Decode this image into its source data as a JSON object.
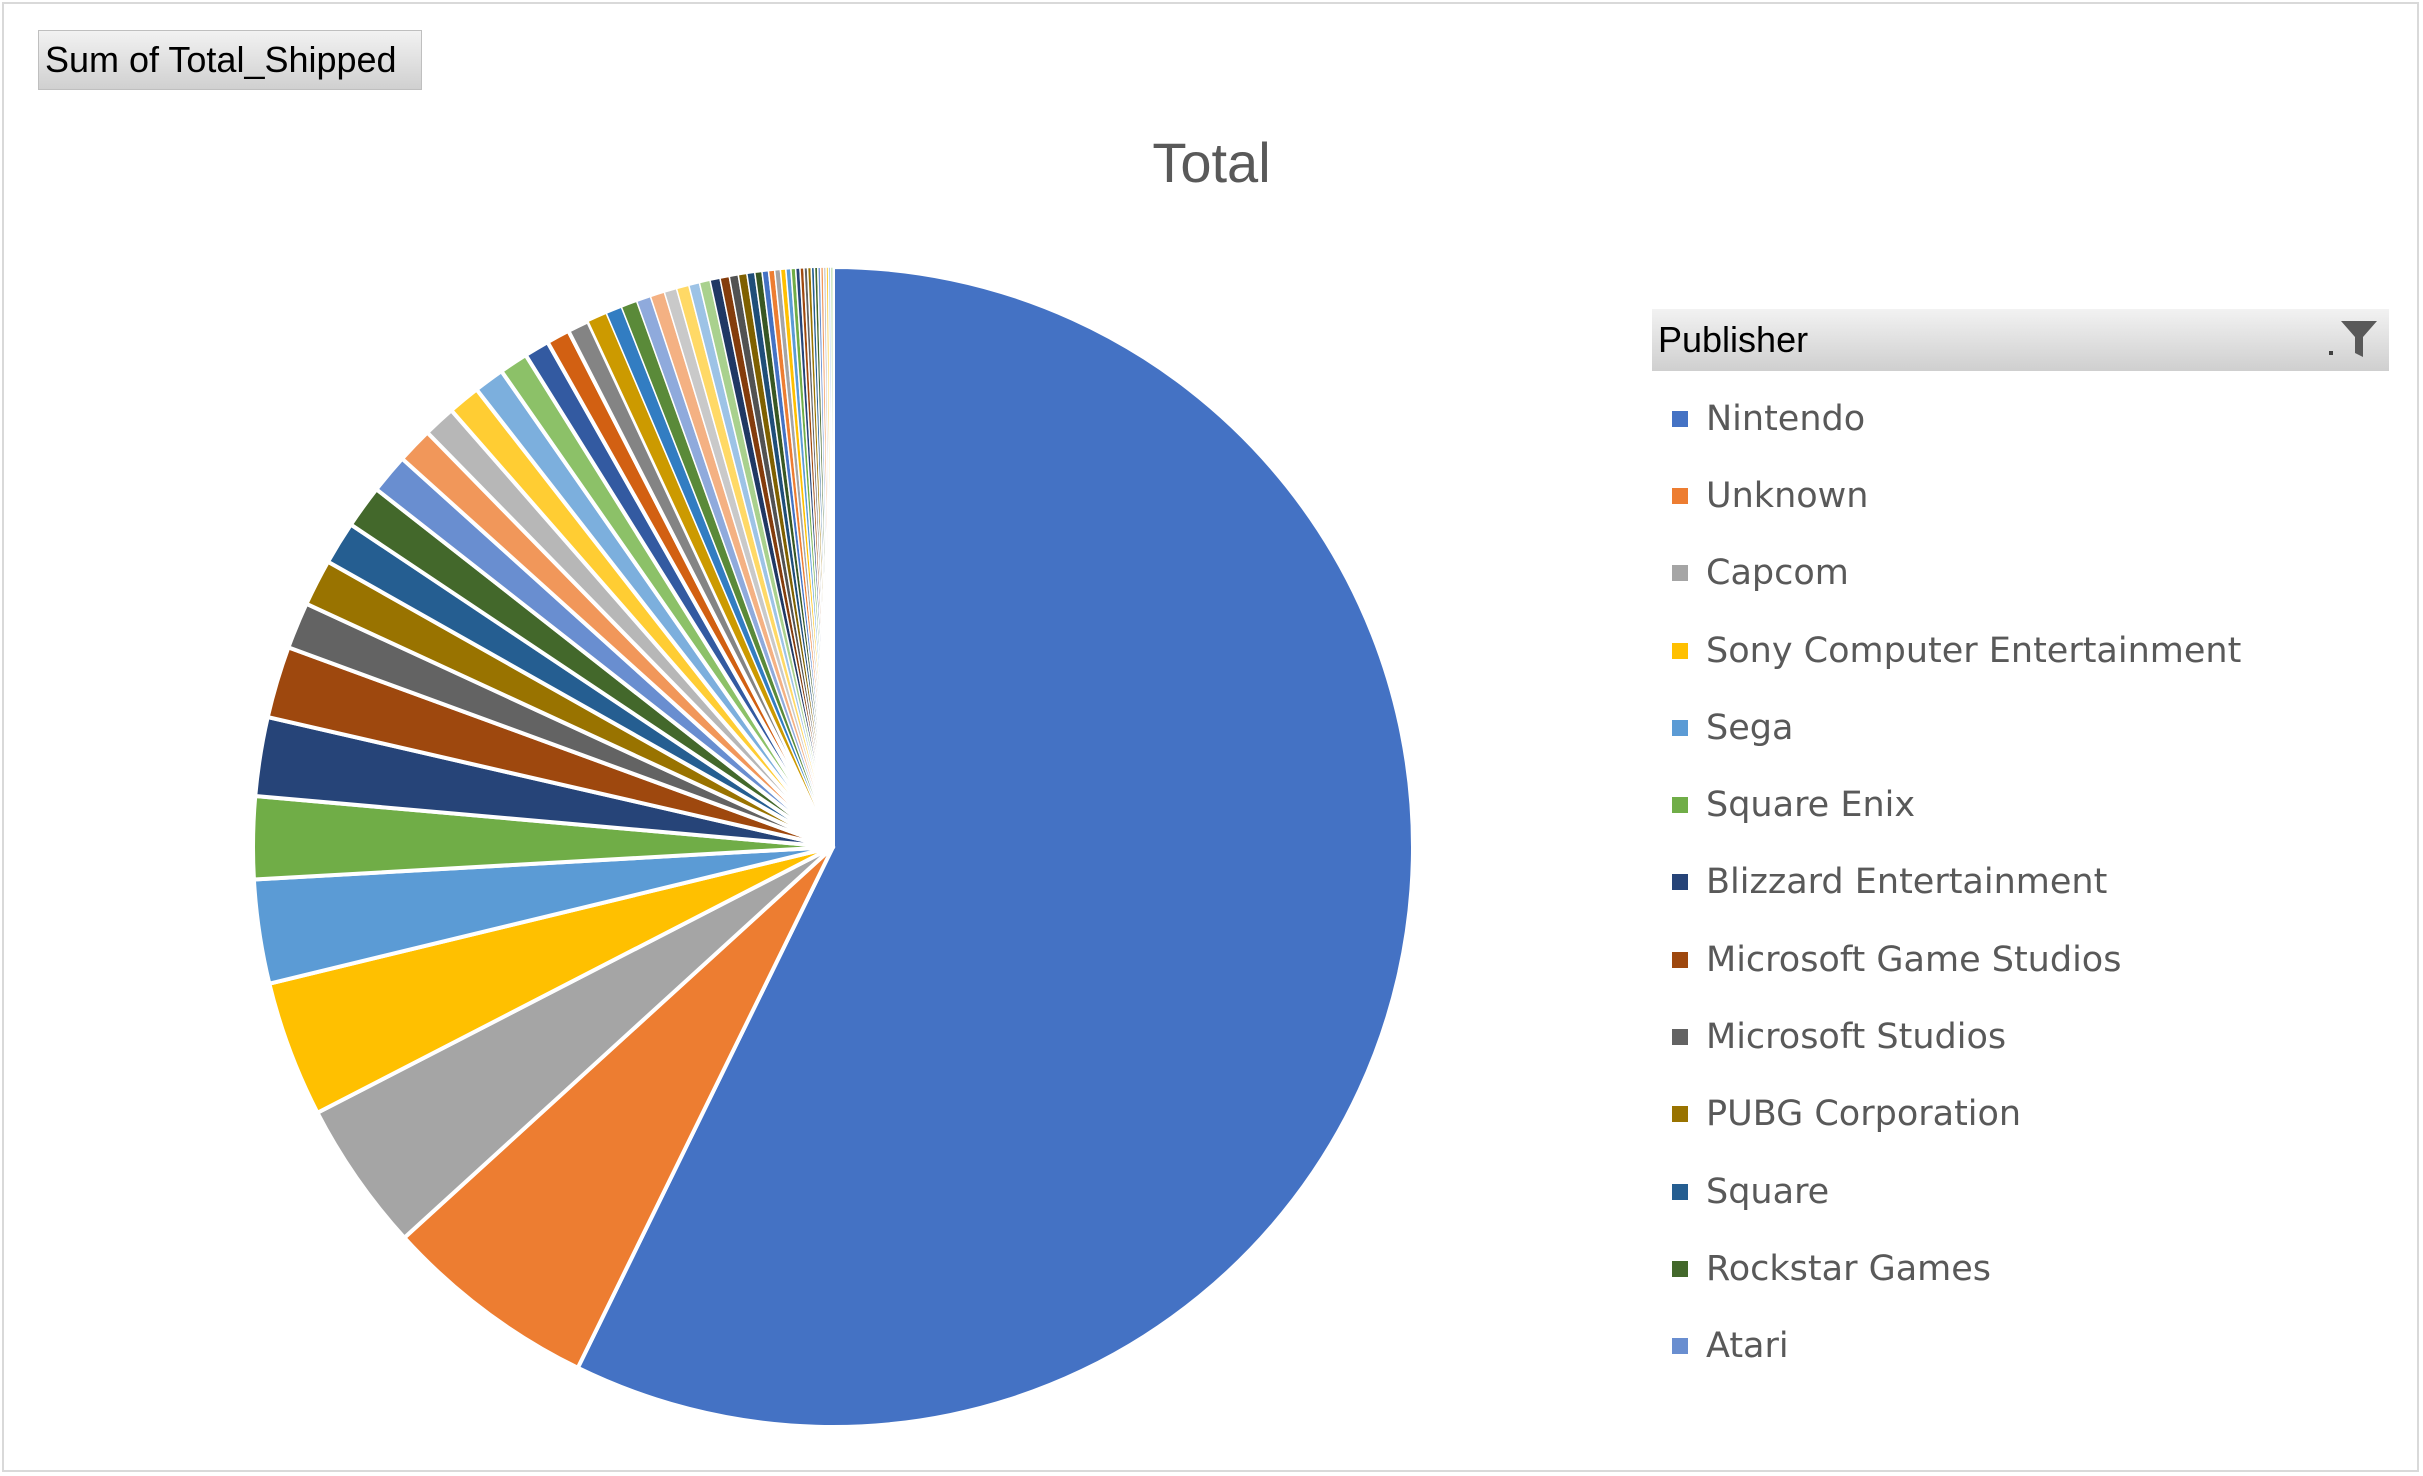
{
  "field_button": {
    "label": "Sum of Total_Shipped"
  },
  "legend": {
    "header": "Publisher"
  },
  "chart_data": {
    "type": "pie",
    "title": "Total",
    "measure": "Sum of Total_Shipped",
    "legend_field": "Publisher",
    "legend_position": "right",
    "slices": [
      {
        "label": "Nintendo",
        "value": 57.4,
        "color": "#4472C4"
      },
      {
        "label": "Unknown",
        "value": 6.0,
        "color": "#ED7D31"
      },
      {
        "label": "Capcom",
        "value": 4.2,
        "color": "#A5A5A5"
      },
      {
        "label": "Sony Computer Entertainment",
        "value": 3.8,
        "color": "#FFC000"
      },
      {
        "label": "Sega",
        "value": 2.9,
        "color": "#5B9BD5"
      },
      {
        "label": "Square Enix",
        "value": 2.3,
        "color": "#70AD47"
      },
      {
        "label": "Blizzard Entertainment",
        "value": 2.2,
        "color": "#264478"
      },
      {
        "label": "Microsoft Game Studios",
        "value": 2.0,
        "color": "#9E480E"
      },
      {
        "label": "Microsoft Studios",
        "value": 1.3,
        "color": "#636363"
      },
      {
        "label": "PUBG Corporation",
        "value": 1.3,
        "color": "#997300"
      },
      {
        "label": "Square",
        "value": 1.2,
        "color": "#255E91"
      },
      {
        "label": "Rockstar Games",
        "value": 1.2,
        "color": "#43682B"
      },
      {
        "label": "Atari",
        "value": 1.1,
        "color": "#698ED0"
      },
      {
        "label": "",
        "value": 1.0,
        "color": "#F1975A"
      },
      {
        "label": "",
        "value": 0.9,
        "color": "#B7B7B7"
      },
      {
        "label": "",
        "value": 0.9,
        "color": "#FFCD33"
      },
      {
        "label": "",
        "value": 0.85,
        "color": "#7CAFDD"
      },
      {
        "label": "",
        "value": 0.8,
        "color": "#8CC168"
      },
      {
        "label": "",
        "value": 0.7,
        "color": "#335AA1"
      },
      {
        "label": "",
        "value": 0.65,
        "color": "#D26012"
      },
      {
        "label": "",
        "value": 0.6,
        "color": "#848484"
      },
      {
        "label": "",
        "value": 0.55,
        "color": "#CC9A00"
      },
      {
        "label": "",
        "value": 0.45,
        "color": "#327DC2"
      },
      {
        "label": "",
        "value": 0.45,
        "color": "#5A8A39"
      },
      {
        "label": "",
        "value": 0.4,
        "color": "#8FAADC"
      },
      {
        "label": "",
        "value": 0.4,
        "color": "#F4B183"
      },
      {
        "label": "",
        "value": 0.35,
        "color": "#C9C9C9"
      },
      {
        "label": "",
        "value": 0.35,
        "color": "#FFD966"
      },
      {
        "label": "",
        "value": 0.3,
        "color": "#9DC3E6"
      },
      {
        "label": "",
        "value": 0.3,
        "color": "#A9D18E"
      },
      {
        "label": "",
        "value": 0.28,
        "color": "#203864"
      },
      {
        "label": "",
        "value": 0.26,
        "color": "#843C0C"
      },
      {
        "label": "",
        "value": 0.25,
        "color": "#525252"
      },
      {
        "label": "",
        "value": 0.24,
        "color": "#7F6000"
      },
      {
        "label": "",
        "value": 0.22,
        "color": "#1F4E79"
      },
      {
        "label": "",
        "value": 0.2,
        "color": "#385723"
      },
      {
        "label": "",
        "value": 0.18,
        "color": "#4472C4"
      },
      {
        "label": "",
        "value": 0.17,
        "color": "#ED7D31"
      },
      {
        "label": "",
        "value": 0.16,
        "color": "#A5A5A5"
      },
      {
        "label": "",
        "value": 0.15,
        "color": "#FFC000"
      },
      {
        "label": "",
        "value": 0.14,
        "color": "#5B9BD5"
      },
      {
        "label": "",
        "value": 0.13,
        "color": "#70AD47"
      },
      {
        "label": "",
        "value": 0.12,
        "color": "#264478"
      },
      {
        "label": "",
        "value": 0.11,
        "color": "#9E480E"
      },
      {
        "label": "",
        "value": 0.1,
        "color": "#636363"
      },
      {
        "label": "",
        "value": 0.1,
        "color": "#997300"
      },
      {
        "label": "",
        "value": 0.09,
        "color": "#255E91"
      },
      {
        "label": "",
        "value": 0.09,
        "color": "#43682B"
      },
      {
        "label": "",
        "value": 0.08,
        "color": "#698ED0"
      },
      {
        "label": "",
        "value": 0.08,
        "color": "#F1975A"
      },
      {
        "label": "",
        "value": 0.07,
        "color": "#B7B7B7"
      },
      {
        "label": "",
        "value": 0.07,
        "color": "#FFCD33"
      },
      {
        "label": "",
        "value": 0.06,
        "color": "#7CAFDD"
      },
      {
        "label": "",
        "value": 0.06,
        "color": "#8CC168"
      }
    ],
    "legend_entries": [
      {
        "label": "Nintendo",
        "color": "#4472C4"
      },
      {
        "label": "Unknown",
        "color": "#ED7D31"
      },
      {
        "label": "Capcom",
        "color": "#A5A5A5"
      },
      {
        "label": "Sony Computer Entertainment",
        "color": "#FFC000"
      },
      {
        "label": "Sega",
        "color": "#5B9BD5"
      },
      {
        "label": "Square Enix",
        "color": "#70AD47"
      },
      {
        "label": "Blizzard Entertainment",
        "color": "#264478"
      },
      {
        "label": "Microsoft Game Studios",
        "color": "#9E480E"
      },
      {
        "label": "Microsoft Studios",
        "color": "#636363"
      },
      {
        "label": "PUBG Corporation",
        "color": "#997300"
      },
      {
        "label": "Square",
        "color": "#255E91"
      },
      {
        "label": "Rockstar Games",
        "color": "#43682B"
      },
      {
        "label": "Atari",
        "color": "#698ED0"
      }
    ]
  }
}
